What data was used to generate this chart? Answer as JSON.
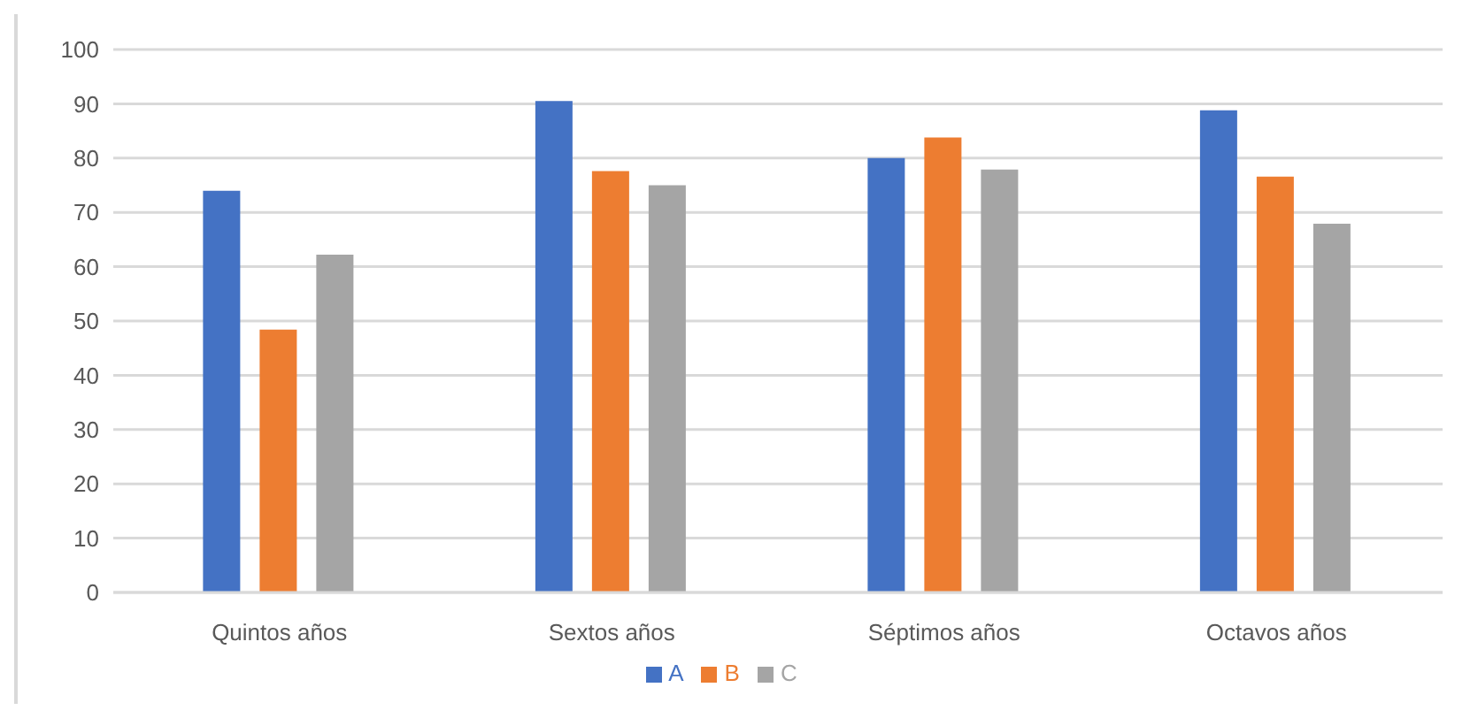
{
  "chart_data": {
    "type": "bar",
    "categories": [
      "Quintos años",
      "Sextos años",
      "Séptimos años",
      "Octavos años"
    ],
    "series": [
      {
        "name": "A",
        "color": "#4472c4",
        "values": [
          74,
          90.5,
          80,
          88.8
        ]
      },
      {
        "name": "B",
        "color": "#ed7d31",
        "values": [
          48.4,
          77.6,
          83.8,
          76.6
        ]
      },
      {
        "name": "C",
        "color": "#a5a5a5",
        "values": [
          62.2,
          75,
          77.9,
          67.9
        ]
      }
    ],
    "ylim": [
      0,
      100
    ],
    "yticks": [
      0,
      10,
      20,
      30,
      40,
      50,
      60,
      70,
      80,
      90,
      100
    ],
    "grid": "y",
    "legend": "bottom"
  }
}
